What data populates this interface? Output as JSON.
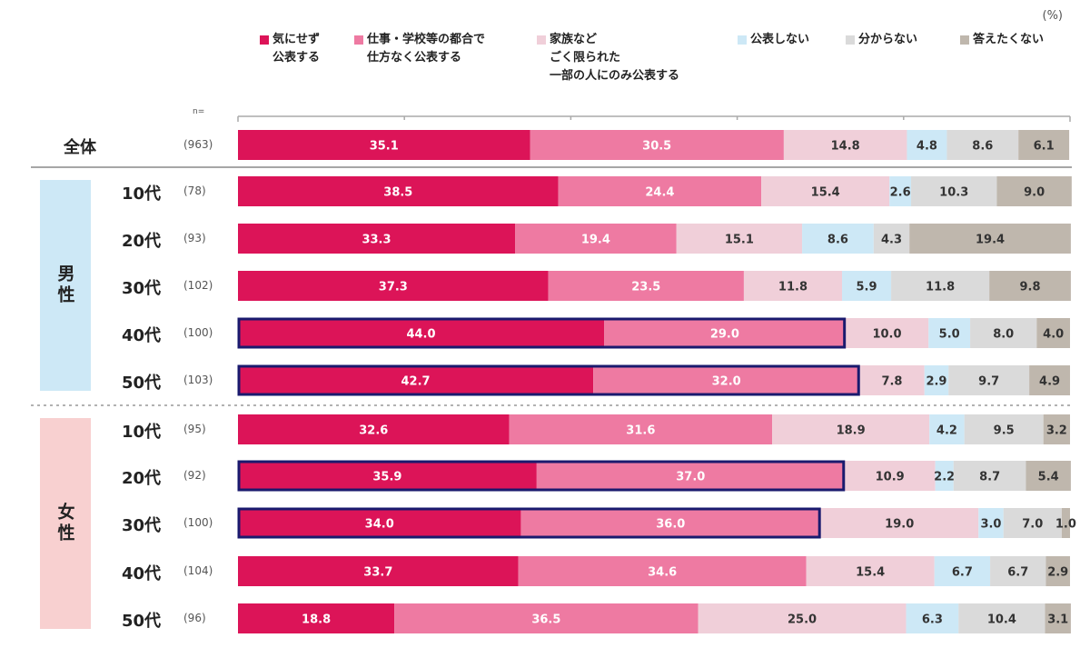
{
  "chart_data": {
    "type": "bar",
    "orientation": "horizontal",
    "stacked": true,
    "unit_label": "(%)",
    "n_header": "n=",
    "legend_position": "top",
    "series": [
      {
        "name": "気にせず\n公表する",
        "color": "#dc1458"
      },
      {
        "name": "仕事・学校等の都合で\n仕方なく公表する",
        "color": "#ee7aa2"
      },
      {
        "name": "家族など\nごく限られた\n一部の人にのみ公表する",
        "color": "#f0cfd9"
      },
      {
        "name": "公表しない",
        "color": "#cde8f6"
      },
      {
        "name": "分からない",
        "color": "#dadada"
      },
      {
        "name": "答えたくない",
        "color": "#bfb7ad"
      }
    ],
    "rows": [
      {
        "label": "全体",
        "group": "all",
        "n": "(963)",
        "values": [
          35.1,
          30.5,
          14.8,
          4.8,
          8.6,
          6.1
        ],
        "highlight": false
      },
      {
        "label": "10代",
        "group": "male",
        "n": "(78)",
        "values": [
          38.5,
          24.4,
          15.4,
          2.6,
          10.3,
          9.0
        ],
        "highlight": false
      },
      {
        "label": "20代",
        "group": "male",
        "n": "(93)",
        "values": [
          33.3,
          19.4,
          15.1,
          8.6,
          4.3,
          19.4
        ],
        "highlight": false
      },
      {
        "label": "30代",
        "group": "male",
        "n": "(102)",
        "values": [
          37.3,
          23.5,
          11.8,
          5.9,
          11.8,
          9.8
        ],
        "highlight": false
      },
      {
        "label": "40代",
        "group": "male",
        "n": "(100)",
        "values": [
          44.0,
          29.0,
          10.0,
          5.0,
          8.0,
          4.0
        ],
        "highlight": true
      },
      {
        "label": "50代",
        "group": "male",
        "n": "(103)",
        "values": [
          42.7,
          32.0,
          7.8,
          2.9,
          9.7,
          4.9
        ],
        "highlight": true
      },
      {
        "label": "10代",
        "group": "female",
        "n": "(95)",
        "values": [
          32.6,
          31.6,
          18.9,
          4.2,
          9.5,
          3.2
        ],
        "highlight": false
      },
      {
        "label": "20代",
        "group": "female",
        "n": "(92)",
        "values": [
          35.9,
          37.0,
          10.9,
          2.2,
          8.7,
          5.4
        ],
        "highlight": true
      },
      {
        "label": "30代",
        "group": "female",
        "n": "(100)",
        "values": [
          34.0,
          36.0,
          19.0,
          3.0,
          7.0,
          1.0
        ],
        "highlight": true
      },
      {
        "label": "40代",
        "group": "female",
        "n": "(104)",
        "values": [
          33.7,
          34.6,
          15.4,
          6.7,
          6.7,
          2.9
        ],
        "highlight": false
      },
      {
        "label": "50代",
        "group": "female",
        "n": "(96)",
        "values": [
          18.8,
          36.5,
          25.0,
          6.3,
          10.4,
          3.1
        ],
        "highlight": false
      }
    ],
    "groups": [
      {
        "key": "male",
        "label": "男性",
        "color": "#cde8f6"
      },
      {
        "key": "female",
        "label": "女性",
        "color": "#f8d0d0"
      }
    ],
    "xlim": [
      0,
      100
    ],
    "grid": false
  }
}
